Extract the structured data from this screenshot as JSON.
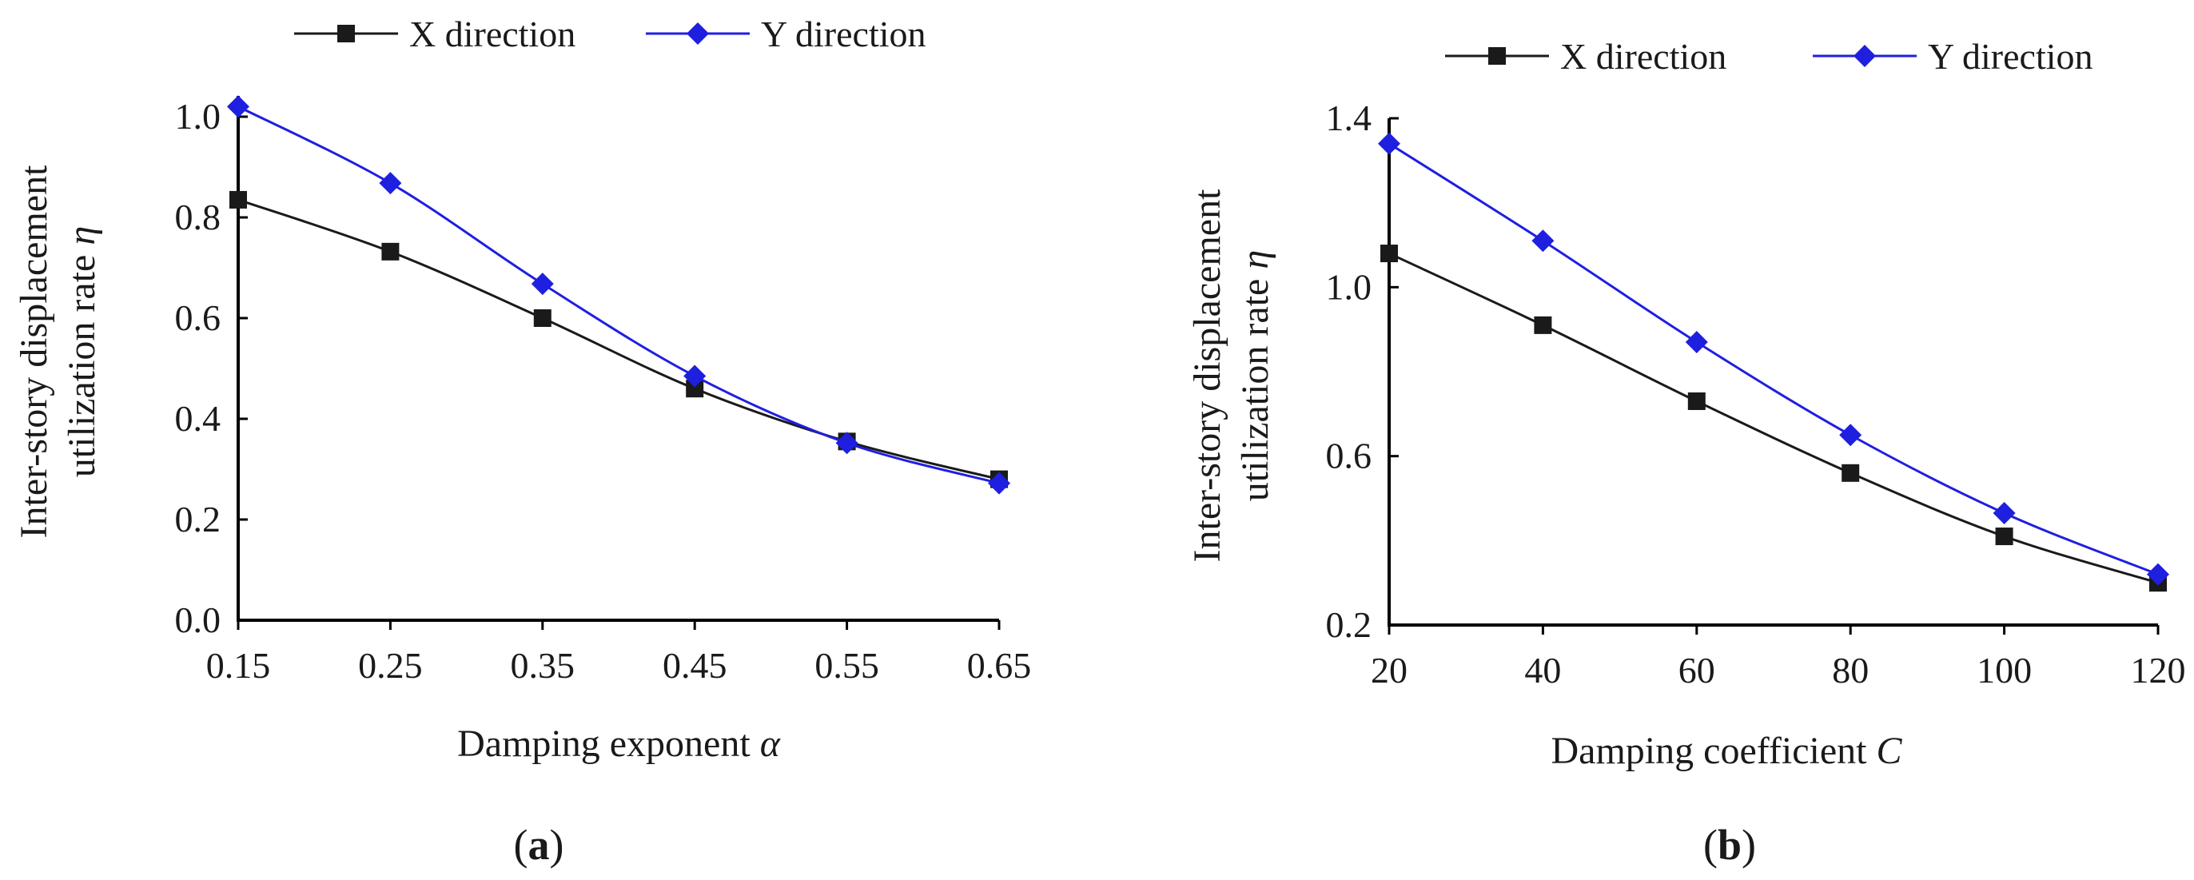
{
  "chart_data": [
    {
      "type": "line",
      "panel_label": "a",
      "xlabel": "Damping exponent",
      "xlabel_symbol": "α",
      "ylabel_line1": "Inter-story displacement",
      "ylabel_line2": "utilization rate",
      "ylabel_symbol": "η",
      "x": [
        0.15,
        0.25,
        0.35,
        0.45,
        0.55,
        0.65
      ],
      "x_tick_labels": [
        "0.15",
        "0.25",
        "0.35",
        "0.45",
        "0.55",
        "0.65"
      ],
      "xlim": [
        0.15,
        0.65
      ],
      "ylim": [
        0.0,
        1.0
      ],
      "y_ticks": [
        0.0,
        0.2,
        0.4,
        0.6,
        0.8,
        1.0
      ],
      "y_tick_labels": [
        "0.0",
        "0.2",
        "0.4",
        "0.6",
        "0.8",
        "1.0"
      ],
      "legend_position": "top",
      "series": [
        {
          "name": "X direction",
          "color": "#1a1a1a",
          "marker": "square",
          "values": [
            0.835,
            0.732,
            0.6,
            0.46,
            0.355,
            0.28
          ]
        },
        {
          "name": "Y direction",
          "color": "#1f1fe0",
          "marker": "diamond",
          "values": [
            1.02,
            0.868,
            0.668,
            0.485,
            0.352,
            0.272
          ]
        }
      ]
    },
    {
      "type": "line",
      "panel_label": "b",
      "xlabel": "Damping coefficient",
      "xlabel_symbol": "C",
      "ylabel_line1": "Inter-story displacement",
      "ylabel_line2": "utilization rate",
      "ylabel_symbol": "η",
      "x": [
        20,
        40,
        60,
        80,
        100,
        120
      ],
      "x_tick_labels": [
        "20",
        "40",
        "60",
        "80",
        "100",
        "120"
      ],
      "xlim": [
        20,
        120
      ],
      "ylim": [
        0.2,
        1.4
      ],
      "y_ticks": [
        0.2,
        0.6,
        1.0,
        1.4
      ],
      "y_tick_labels": [
        "0.2",
        "0.6",
        "1.0",
        "1.4"
      ],
      "legend_position": "top",
      "series": [
        {
          "name": "X direction",
          "color": "#1a1a1a",
          "marker": "square",
          "values": [
            1.08,
            0.91,
            0.73,
            0.56,
            0.41,
            0.3
          ]
        },
        {
          "name": "Y direction",
          "color": "#1f1fe0",
          "marker": "diamond",
          "values": [
            1.34,
            1.11,
            0.87,
            0.65,
            0.465,
            0.32
          ]
        }
      ]
    }
  ]
}
